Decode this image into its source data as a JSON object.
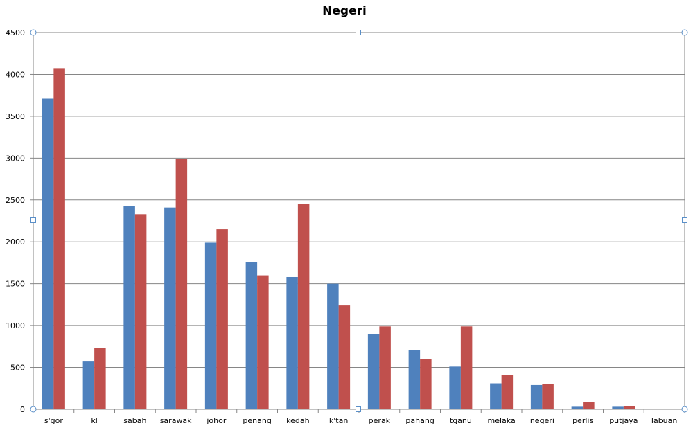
{
  "chart_data": {
    "type": "bar",
    "title": "Negeri",
    "xlabel": "",
    "ylabel": "",
    "ylim": [
      0,
      4500
    ],
    "yticks": [
      0,
      500,
      1000,
      1500,
      2000,
      2500,
      3000,
      3500,
      4000,
      4500
    ],
    "grid": true,
    "legend": "none",
    "categories": [
      "s'gor",
      "kl",
      "sabah",
      "sarawak",
      "johor",
      "penang",
      "kedah",
      "k'tan",
      "perak",
      "pahang",
      "tganu",
      "melaka",
      "negeri",
      "perlis",
      "putjaya",
      "labuan"
    ],
    "series": [
      {
        "color": "#4f81bd",
        "values": [
          3710,
          570,
          2430,
          2410,
          1990,
          1760,
          1580,
          1500,
          900,
          710,
          510,
          310,
          290,
          30,
          30,
          0
        ]
      },
      {
        "color": "#c0504d",
        "values": [
          4075,
          730,
          2330,
          2990,
          2150,
          1600,
          2450,
          1240,
          990,
          600,
          990,
          410,
          300,
          85,
          40,
          0
        ]
      }
    ]
  }
}
